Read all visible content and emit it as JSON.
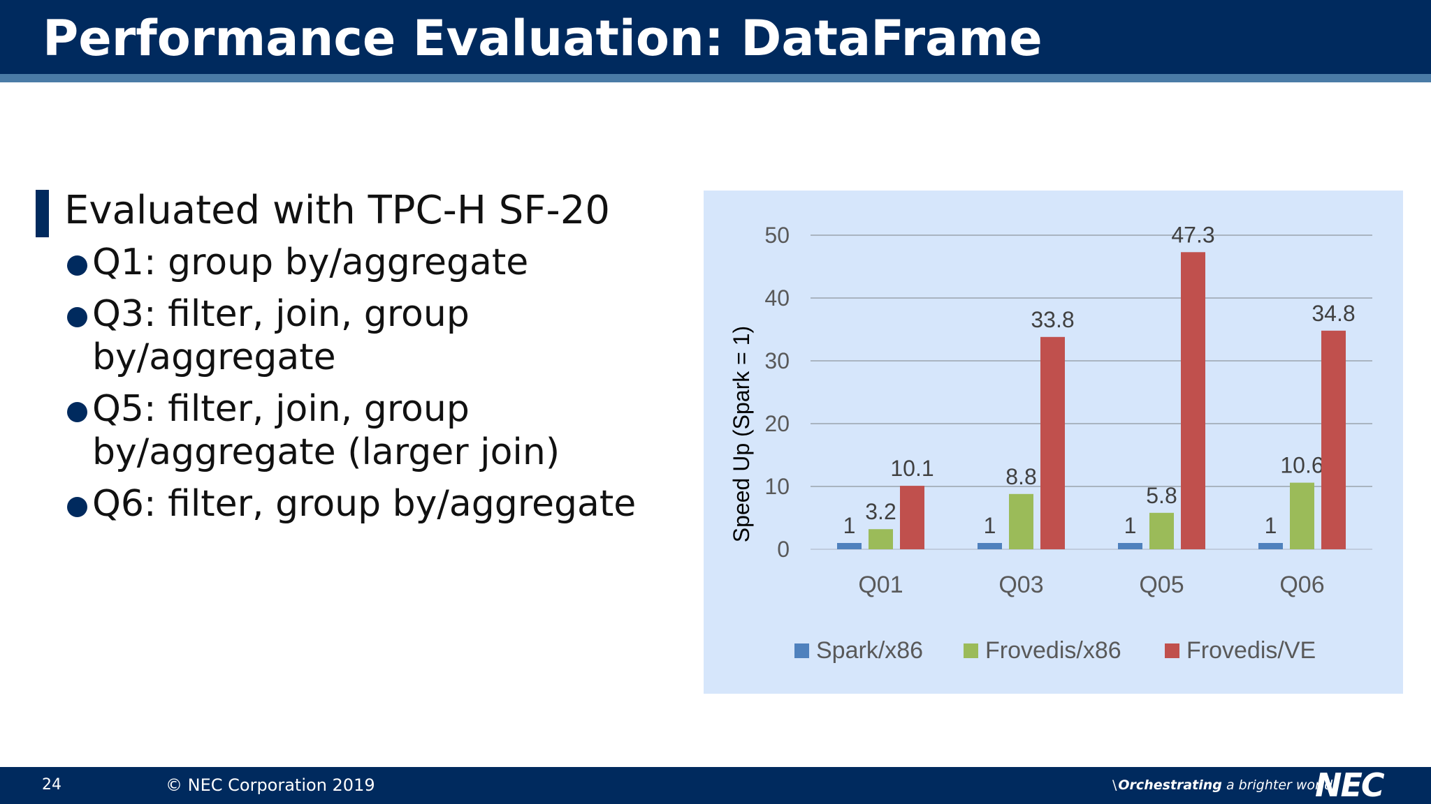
{
  "slide": {
    "title": "Performance Evaluation: DataFrame",
    "lead": "Evaluated with TPC-H SF-20",
    "bullets": [
      "Q1: group by/aggregate",
      "Q3: filter, join, group by/aggregate",
      "Q5: filter, join, group by/aggregate (larger join)",
      "Q6: filter, group by/aggregate"
    ]
  },
  "footer": {
    "page_number": "24",
    "copyright": "© NEC Corporation 2019",
    "tagline_slash": "\\",
    "tagline_strong": "Orchestrating",
    "tagline_rest": " a brighter world",
    "logo_text": "NEC"
  },
  "colors": {
    "header": "#002a5e",
    "stripe": "#4a7ba6",
    "chart_bg": "#d6e6fb"
  },
  "chart_data": {
    "type": "bar",
    "title": "",
    "xlabel": "",
    "ylabel": "Speed Up (Spark = 1)",
    "ylim": [
      0,
      50
    ],
    "yticks": [
      0,
      10,
      20,
      30,
      40,
      50
    ],
    "grid": true,
    "legend_position": "bottom",
    "categories": [
      "Q01",
      "Q03",
      "Q05",
      "Q06"
    ],
    "series": [
      {
        "name": "Spark/x86",
        "color": "#4f81bd",
        "values": [
          1,
          1,
          1,
          1
        ],
        "labels": [
          "1",
          "1",
          "1",
          "1"
        ]
      },
      {
        "name": "Frovedis/x86",
        "color": "#9bbb59",
        "values": [
          3.2,
          8.8,
          5.8,
          10.6
        ],
        "labels": [
          "3.2",
          "8.8",
          "5.8",
          "10.6"
        ]
      },
      {
        "name": "Frovedis/VE",
        "color": "#c0504d",
        "values": [
          10.1,
          33.8,
          47.3,
          34.8
        ],
        "labels": [
          "10.1",
          "33.8",
          "47.3",
          "34.8"
        ]
      }
    ]
  }
}
